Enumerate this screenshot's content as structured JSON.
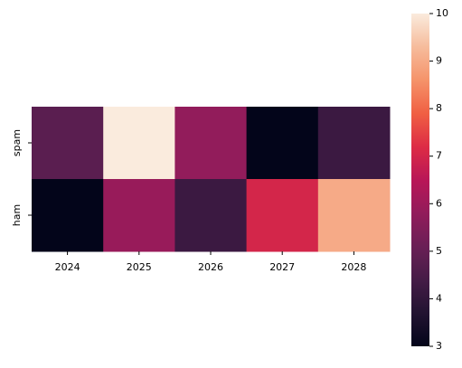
{
  "chart_data": {
    "type": "heatmap",
    "categories": [
      "2024",
      "2025",
      "2026",
      "2027",
      "2028"
    ],
    "rows": [
      "spam",
      "ham"
    ],
    "values": [
      [
        4.8,
        10,
        5.8,
        3,
        4.2
      ],
      [
        3,
        5.9,
        4.2,
        7,
        9
      ]
    ],
    "colormap": "rocket",
    "clim": [
      3,
      10
    ],
    "cticks": [
      3,
      4,
      5,
      6,
      7,
      8,
      9,
      10
    ]
  }
}
